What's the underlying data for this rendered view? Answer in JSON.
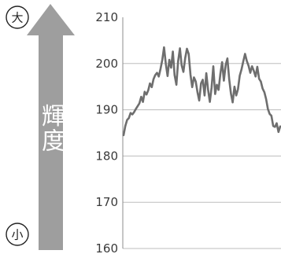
{
  "chart_data": {
    "type": "line",
    "ylabel": "輝度",
    "ylim": [
      160,
      210
    ],
    "yticks": [
      210,
      200,
      190,
      180,
      170,
      160
    ],
    "grid": true,
    "scale_marks": {
      "top": "大",
      "bottom": "小"
    },
    "series": [
      {
        "values": [
          184.5,
          186.5,
          187.8,
          188.2,
          189.3,
          189.0,
          189.5,
          190.2,
          190.8,
          191.4,
          192.8,
          191.7,
          193.9,
          193.3,
          194.2,
          195.7,
          194.9,
          196.6,
          197.5,
          198.0,
          197.2,
          198.9,
          200.8,
          203.5,
          199.9,
          197.3,
          200.8,
          199.1,
          202.6,
          197.5,
          195.4,
          200.5,
          203.3,
          199.6,
          198.2,
          201.2,
          203.2,
          202.1,
          197.6,
          194.9,
          197.0,
          196.1,
          193.8,
          192.0,
          195.7,
          196.5,
          193.1,
          197.9,
          194.4,
          191.7,
          194.8,
          199.4,
          193.4,
          195.4,
          194.3,
          197.8,
          200.3,
          196.3,
          199.7,
          201.1,
          196.6,
          193.5,
          191.6,
          195.0,
          193.1,
          194.4,
          197.4,
          198.7,
          200.4,
          202.1,
          200.6,
          199.5,
          198.0,
          199.4,
          198.4,
          197.2,
          199.3,
          196.7,
          196.1,
          194.6,
          193.8,
          192.3,
          190.2,
          189.1,
          188.7,
          186.5,
          186.3,
          187.1,
          185.2,
          186.4
        ],
        "color": "#6e6e6e"
      }
    ],
    "colors": {
      "arrow": "#9e9e9e",
      "grid": "#bdbdbd",
      "axis": "#8c8c8c"
    }
  }
}
